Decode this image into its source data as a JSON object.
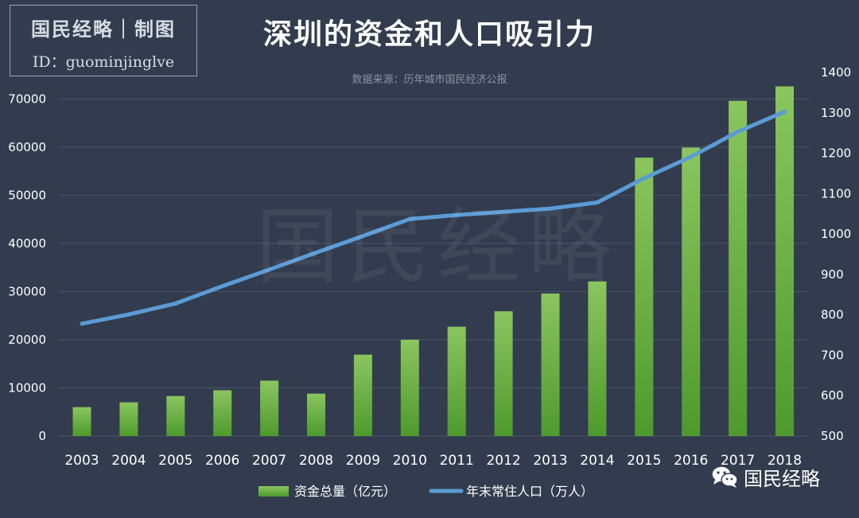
{
  "badge": {
    "line1": "国民经略｜制图",
    "line2": "ID：guominjinglve"
  },
  "title": "深圳的资金和人口吸引力",
  "source": "数据来源：历年城市国民经济公报",
  "watermark": "国民经略",
  "brand": {
    "label": "国民经略",
    "icon": "wechat-icon"
  },
  "colors": {
    "background": "#323c4e",
    "bar_top": "#8bc55f",
    "bar_bottom": "#4e9a2d",
    "line": "#5b9bd5",
    "grid": "#4a5568",
    "text": "#ffffff"
  },
  "chart_data": {
    "type": "bar+line",
    "categories": [
      "2003",
      "2004",
      "2005",
      "2006",
      "2007",
      "2008",
      "2009",
      "2010",
      "2011",
      "2012",
      "2013",
      "2014",
      "2015",
      "2016",
      "2017",
      "2018"
    ],
    "series": [
      {
        "name": "资金总量（亿元）",
        "type": "bar",
        "axis": "left",
        "values": [
          6000,
          7000,
          8300,
          9500,
          11500,
          8800,
          16900,
          20000,
          22700,
          25900,
          29600,
          32100,
          57800,
          59900,
          69600,
          72600
        ]
      },
      {
        "name": "年末常住人口（万人）",
        "type": "line",
        "axis": "right",
        "values": [
          778,
          801,
          828,
          871,
          912,
          954,
          995,
          1037,
          1047,
          1055,
          1063,
          1078,
          1138,
          1191,
          1253,
          1303
        ]
      }
    ],
    "y_left": {
      "min": 0,
      "max": 75000,
      "ticks": [
        0,
        10000,
        20000,
        30000,
        40000,
        50000,
        60000,
        70000
      ]
    },
    "y_right": {
      "min": 500,
      "max": 1400,
      "ticks": [
        500,
        600,
        700,
        800,
        900,
        1000,
        1100,
        1200,
        1300,
        1400
      ]
    },
    "legend": {
      "position": "bottom",
      "bar_label": "资金总量（亿元）",
      "line_label": "年末常住人口（万人）"
    },
    "grid": true
  }
}
